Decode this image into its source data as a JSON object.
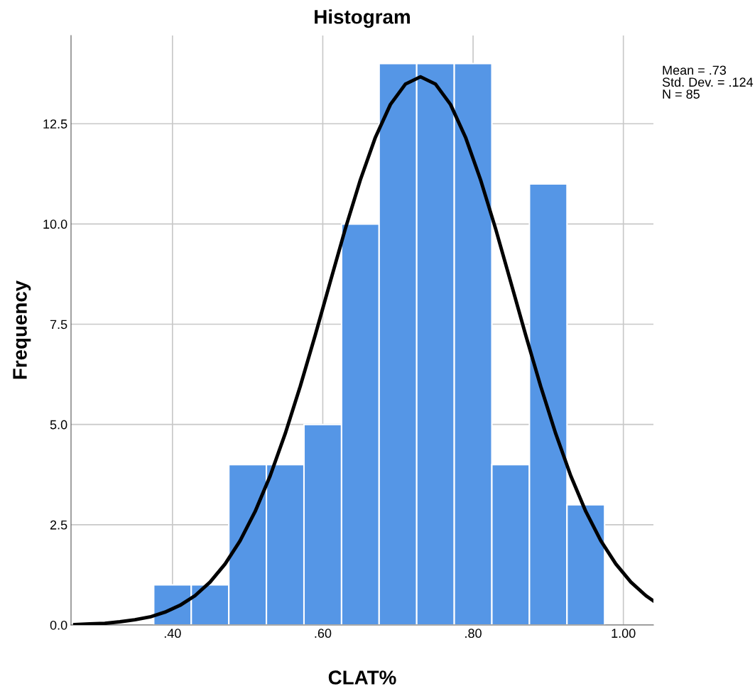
{
  "chart_data": {
    "type": "histogram",
    "title": "Histogram",
    "xlabel": "CLAT%",
    "ylabel": "Frequency",
    "bins": [
      0.375,
      0.425,
      0.475,
      0.525,
      0.575,
      0.625,
      0.675,
      0.725,
      0.775,
      0.825,
      0.875,
      0.925,
      0.975
    ],
    "values": [
      1,
      1,
      4,
      4,
      5,
      10,
      14,
      14,
      14,
      4,
      11,
      3
    ],
    "color": "#5596e6",
    "series": [
      {
        "type": "line",
        "color": "#000000",
        "x": [
          0.27,
          0.29,
          0.31,
          0.33,
          0.35,
          0.37,
          0.39,
          0.41,
          0.43,
          0.45,
          0.47,
          0.49,
          0.51,
          0.53,
          0.55,
          0.57,
          0.59,
          0.61,
          0.63,
          0.65,
          0.67,
          0.69,
          0.71,
          0.73,
          0.75,
          0.77,
          0.79,
          0.81,
          0.83,
          0.85,
          0.87,
          0.89,
          0.91,
          0.93,
          0.95,
          0.97,
          0.99,
          1.01,
          1.03,
          1.04
        ],
        "values": [
          0.01,
          0.03,
          0.04,
          0.08,
          0.13,
          0.2,
          0.32,
          0.49,
          0.73,
          1.07,
          1.52,
          2.1,
          2.83,
          3.72,
          4.77,
          5.95,
          7.23,
          8.56,
          9.88,
          11.1,
          12.16,
          12.98,
          13.49,
          13.67,
          13.49,
          12.98,
          12.16,
          11.1,
          9.88,
          8.56,
          7.23,
          5.95,
          4.77,
          3.72,
          2.83,
          2.1,
          1.52,
          1.07,
          0.73,
          0.6
        ]
      }
    ],
    "xlim": [
      0.265,
      1.04
    ],
    "ylim": [
      0,
      14.7
    ],
    "xticks": [
      {
        "value": 0.4,
        "label": ".40"
      },
      {
        "value": 0.6,
        "label": ".60"
      },
      {
        "value": 0.8,
        "label": ".80"
      },
      {
        "value": 1.0,
        "label": "1.00"
      }
    ],
    "yticks": [
      {
        "value": 0,
        "label": "0.0"
      },
      {
        "value": 2.5,
        "label": "2.5"
      },
      {
        "value": 5,
        "label": "5.0"
      },
      {
        "value": 7.5,
        "label": "7.5"
      },
      {
        "value": 10,
        "label": "10.0"
      },
      {
        "value": 12.5,
        "label": "12.5"
      }
    ],
    "grid": true,
    "annotations": [
      "Mean = .73\nStd. Dev. = .124\nN = 85"
    ]
  }
}
